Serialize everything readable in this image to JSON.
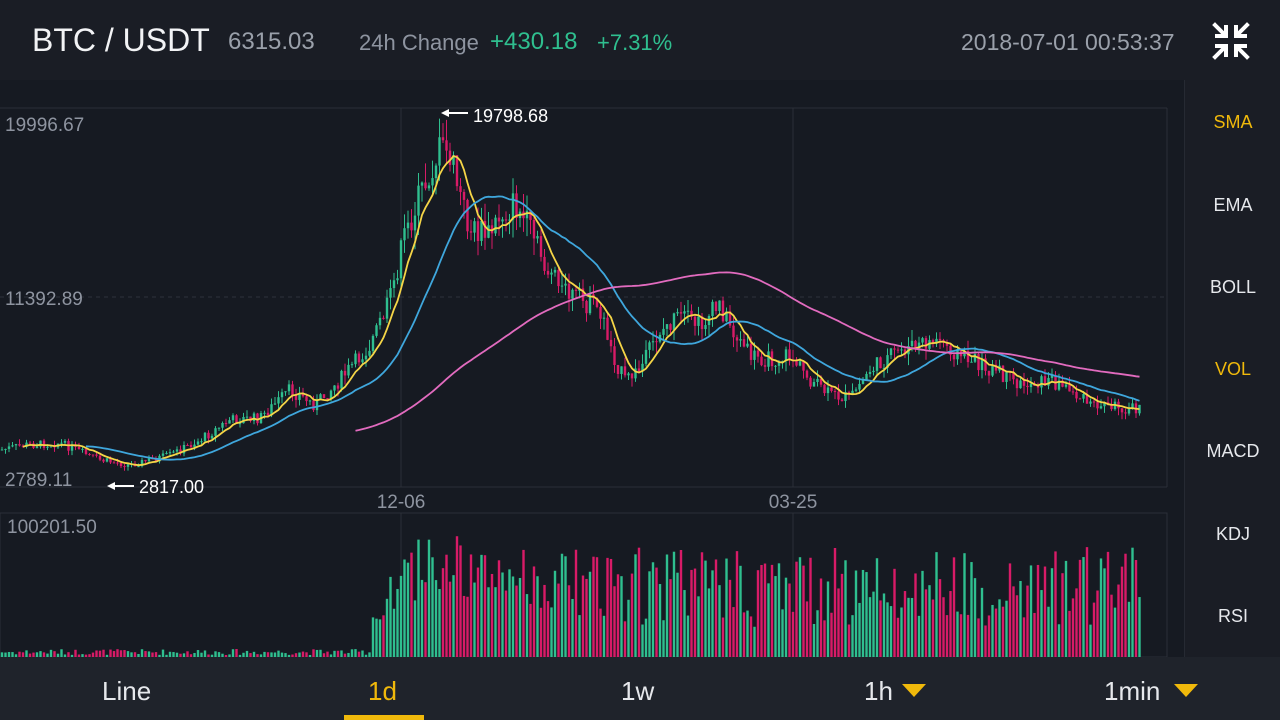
{
  "header": {
    "pair": "BTC / USDT",
    "price": "6315.03",
    "change_label": "24h Change",
    "change_abs": "+430.18",
    "change_pct": "+7.31%",
    "datetime": "2018-07-01 00:53:37",
    "collapse_icon": "collapse-icon"
  },
  "price_chart": {
    "y_labels": {
      "top": "19996.67",
      "mid": "11392.89",
      "bottom": "2789.11"
    },
    "high_marker": "19798.68",
    "low_marker": "2817.00",
    "x_labels": [
      "12-06",
      "03-25"
    ]
  },
  "volume_chart": {
    "max_label": "100201.50"
  },
  "indicators": {
    "items": [
      {
        "label": "SMA",
        "active": true
      },
      {
        "label": "EMA",
        "active": false
      },
      {
        "label": "BOLL",
        "active": false
      },
      {
        "label": "VOL",
        "active": true
      },
      {
        "label": "MACD",
        "active": false
      },
      {
        "label": "KDJ",
        "active": false
      },
      {
        "label": "RSI",
        "active": false
      }
    ]
  },
  "timeframes": {
    "tabs": [
      {
        "label": "Line",
        "active": false
      },
      {
        "label": "1d",
        "active": true
      },
      {
        "label": "1w",
        "active": false
      },
      {
        "label": "1h",
        "active": false,
        "dropdown": true
      },
      {
        "label": "1min",
        "active": false,
        "dropdown": true
      }
    ]
  },
  "colors": {
    "up": "#2fbf8f",
    "down": "#d81b67",
    "sma_fast": "#f5d547",
    "sma_mid": "#3fa7dd",
    "sma_slow": "#e26bbf",
    "accent": "#f0b90b"
  }
}
